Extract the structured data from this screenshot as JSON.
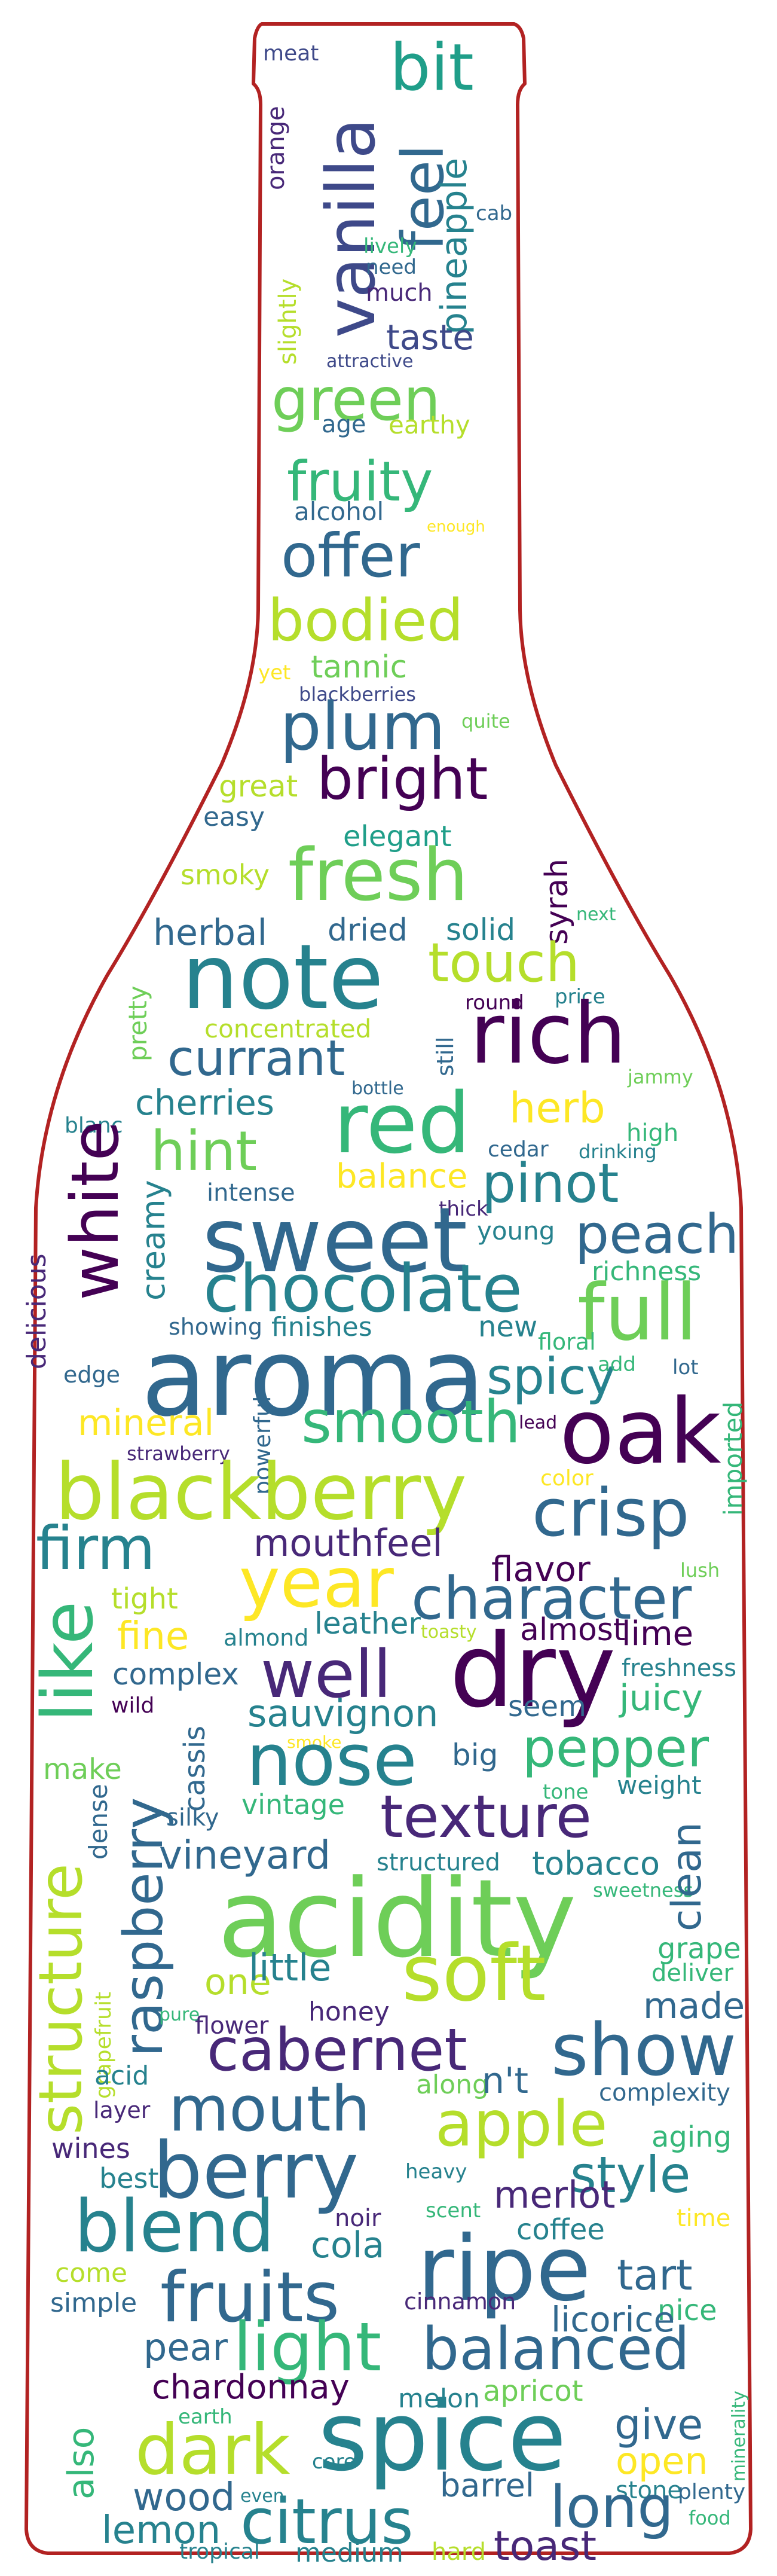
{
  "image": {
    "subject": "word cloud",
    "outline_color": "#b22222",
    "background": "#ffffff"
  },
  "palette": {
    "p1": "#440154",
    "p2": "#482878",
    "p3": "#3e4989",
    "p4": "#31688e",
    "p5": "#26828e",
    "p6": "#1f9e89",
    "p7": "#35b779",
    "p8": "#6ece58",
    "p9": "#b5de2b",
    "p10": "#fde725"
  },
  "words": [
    "meat",
    "bit",
    "vanilla",
    "orange",
    "feel",
    "pineapple",
    "cab",
    "lively",
    "need",
    "slightly",
    "much",
    "taste",
    "attractive",
    "green",
    "age",
    "earthy",
    "fruity",
    "alcohol",
    "enough",
    "offer",
    "bodied",
    "yet",
    "tannic",
    "blackberries",
    "plum",
    "quite",
    "great",
    "bright",
    "easy",
    "elegant",
    "smoky",
    "fresh",
    "syrah",
    "next",
    "herbal",
    "dried",
    "solid",
    "note",
    "touch",
    "round",
    "price",
    "concentrated",
    "pretty",
    "rich",
    "still",
    "currant",
    "bottle",
    "jammy",
    "cherries",
    "red",
    "herb",
    "blanc",
    "hint",
    "drinking",
    "high",
    "cedar",
    "balance",
    "intense",
    "white",
    "creamy",
    "pinot",
    "thick",
    "sweet",
    "young",
    "peach",
    "delicious",
    "chocolate",
    "richness",
    "showing",
    "finishes",
    "new",
    "full",
    "floral",
    "edge",
    "aroma",
    "spicy",
    "add",
    "lot",
    "lead",
    "mineral",
    "smooth",
    "oak",
    "strawberry",
    "powerful",
    "imported",
    "color",
    "blackberry",
    "crisp",
    "firm",
    "mouthfeel",
    "year",
    "flavor",
    "character",
    "tight",
    "lush",
    "leather",
    "toasty",
    "almond",
    "fine",
    "like",
    "almost",
    "lime",
    "freshness",
    "complex",
    "well",
    "dry",
    "wild",
    "sauvignon",
    "seem",
    "juicy",
    "smoke",
    "cassis",
    "nose",
    "pepper",
    "make",
    "big",
    "tone",
    "weight",
    "silky",
    "vintage",
    "dense",
    "texture",
    "vineyard",
    "tobacco",
    "structured",
    "sweetness",
    "clean",
    "raspberry",
    "structure",
    "acidity",
    "grape",
    "deliver",
    "one",
    "little",
    "soft",
    "grapefruit",
    "pure",
    "flower",
    "honey",
    "made",
    "cabernet",
    "show",
    "acid",
    "along",
    "n't",
    "complexity",
    "layer",
    "mouth",
    "apple",
    "aging",
    "wines",
    "best",
    "berry",
    "heavy",
    "style",
    "blend",
    "noir",
    "scent",
    "merlot",
    "time",
    "coffee",
    "cola",
    "come",
    "ripe",
    "tart",
    "simple",
    "fruits",
    "cinnamon",
    "nice",
    "licorice",
    "pear",
    "light",
    "balanced",
    "chardonnay",
    "melon",
    "apricot",
    "earth",
    "minerality",
    "also",
    "dark",
    "spice",
    "give",
    "core",
    "open",
    "wood",
    "even",
    "stone",
    "plenty",
    "barrel",
    "lemon",
    "citrus",
    "long",
    "food",
    "tropical",
    "medium",
    "hard",
    "toast"
  ]
}
